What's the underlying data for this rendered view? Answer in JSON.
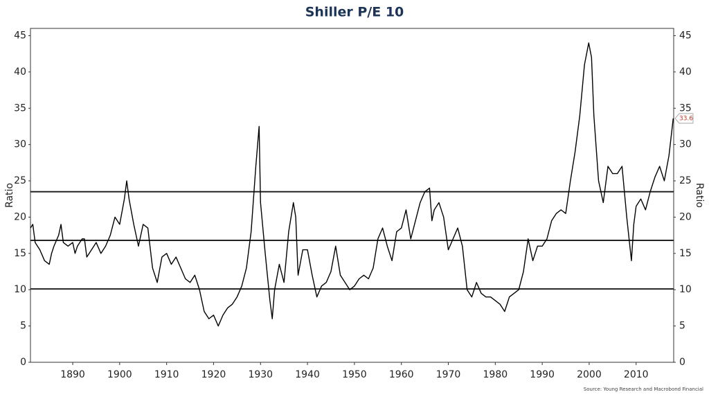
{
  "chart_data": {
    "type": "line",
    "title": "Shiller P/E 10",
    "ylabel": "Ratio",
    "y2label": "Ratio",
    "source": "Source: Young Research and Macrobond Financial",
    "xlim": [
      1881,
      2018
    ],
    "xticks": [
      1890,
      1900,
      1910,
      1920,
      1930,
      1940,
      1950,
      1960,
      1970,
      1980,
      1990,
      2000,
      2010
    ],
    "ylim": [
      0,
      46
    ],
    "yticks": [
      0,
      5,
      10,
      15,
      20,
      25,
      30,
      35,
      40,
      45
    ],
    "y2lim": [
      0,
      46
    ],
    "y2ticks": [
      0,
      5,
      10,
      15,
      20,
      25,
      30,
      35,
      40,
      45
    ],
    "reference_lines": [
      23.5,
      16.8,
      10.1
    ],
    "annotation": {
      "value": 33.6,
      "label": "33.6"
    },
    "x": [
      1881,
      1881.5,
      1882,
      1883,
      1884,
      1885,
      1885.5,
      1886,
      1887,
      1887.5,
      1888,
      1889,
      1890,
      1890.5,
      1891,
      1892,
      1892.5,
      1893,
      1894,
      1895,
      1896,
      1897,
      1898,
      1899,
      1900,
      1901,
      1901.5,
      1902,
      1903,
      1904,
      1905,
      1906,
      1907,
      1908,
      1909,
      1910,
      1911,
      1912,
      1913,
      1914,
      1915,
      1916,
      1917,
      1918,
      1919,
      1920,
      1921,
      1922,
      1923,
      1924,
      1925,
      1926,
      1927,
      1928,
      1929,
      1929.7,
      1930,
      1931,
      1932,
      1932.5,
      1933,
      1934,
      1935,
      1936,
      1937,
      1937.5,
      1938,
      1939,
      1940,
      1941,
      1942,
      1943,
      1944,
      1945,
      1946,
      1947,
      1948,
      1949,
      1950,
      1951,
      1952,
      1953,
      1954,
      1955,
      1956,
      1957,
      1958,
      1959,
      1960,
      1961,
      1962,
      1963,
      1964,
      1965,
      1966,
      1966.5,
      1967,
      1968,
      1969,
      1970,
      1971,
      1972,
      1973,
      1974,
      1975,
      1976,
      1977,
      1978,
      1979,
      1980,
      1981,
      1982,
      1983,
      1984,
      1985,
      1986,
      1987,
      1988,
      1989,
      1990,
      1991,
      1992,
      1993,
      1994,
      1995,
      1996,
      1997,
      1998,
      1999,
      1999.9,
      2000.5,
      2001,
      2002,
      2003,
      2004,
      2005,
      2006,
      2007,
      2008,
      2009,
      2009.5,
      2010,
      2011,
      2012,
      2013,
      2014,
      2015,
      2016,
      2017,
      2017.9
    ],
    "series": [
      {
        "color": "#000000",
        "values": [
          18.5,
          19,
          16.5,
          15.5,
          14,
          13.5,
          15,
          16,
          17.5,
          19,
          16.5,
          16,
          16.5,
          15,
          16,
          17,
          17,
          14.5,
          15.5,
          16.5,
          15,
          16,
          17.5,
          20,
          19,
          22.5,
          25,
          22.5,
          19,
          16,
          19,
          18.5,
          13,
          11,
          14.5,
          15,
          13.5,
          14.5,
          13,
          11.5,
          11,
          12,
          10,
          7,
          6,
          6.5,
          5,
          6.5,
          7.5,
          8,
          9,
          10.5,
          13,
          18,
          27,
          32.5,
          22,
          15,
          8.5,
          6,
          10,
          13.5,
          11,
          18,
          22,
          20,
          12,
          15.5,
          15.5,
          12,
          9,
          10.5,
          11,
          12.5,
          16,
          12,
          11,
          10,
          10.5,
          11.5,
          12,
          11.5,
          13,
          17,
          18.5,
          16,
          14,
          18,
          18.5,
          21,
          17,
          19.5,
          22,
          23.5,
          24,
          19.5,
          21,
          22,
          20,
          15.5,
          17,
          18.5,
          16,
          10,
          9,
          11,
          9.5,
          9,
          9,
          8.5,
          8,
          7,
          9,
          9.5,
          10,
          12.5,
          17,
          14,
          16,
          16,
          17,
          19.5,
          20.5,
          21,
          20.5,
          25,
          29,
          34,
          41,
          44,
          42,
          34,
          25,
          22,
          27,
          26,
          26,
          27,
          20,
          14,
          19,
          21.5,
          22.5,
          21,
          23.5,
          25.5,
          27,
          25,
          28.5,
          33.6
        ]
      }
    ]
  }
}
